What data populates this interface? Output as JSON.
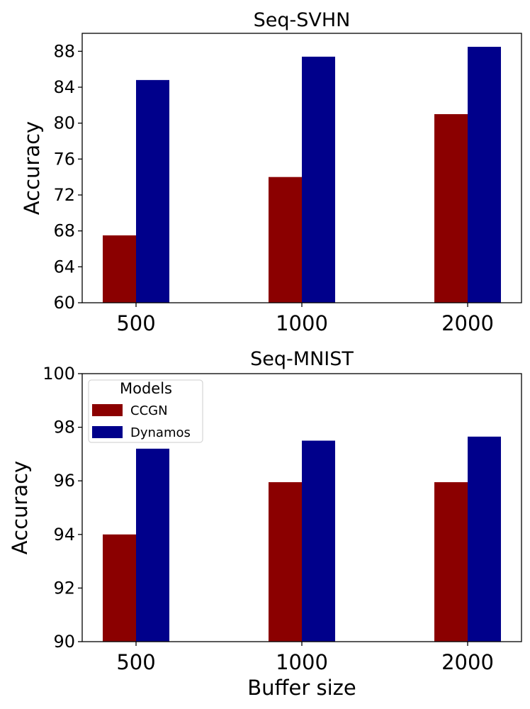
{
  "chart_data": [
    {
      "type": "bar",
      "title": "Seq-SVHN",
      "xlabel": "",
      "ylabel": "Accuracy",
      "categories": [
        "500",
        "1000",
        "2000"
      ],
      "ylim": [
        60,
        90
      ],
      "yticks": [
        "60",
        "64",
        "68",
        "72",
        "76",
        "80",
        "84",
        "88"
      ],
      "series": [
        {
          "name": "CCGN",
          "color": "#8b0000",
          "values": [
            67.5,
            74.0,
            81.0
          ]
        },
        {
          "name": "Dynamos",
          "color": "#00008b",
          "values": [
            84.8,
            87.4,
            88.5
          ]
        }
      ]
    },
    {
      "type": "bar",
      "title": "Seq-MNIST",
      "xlabel": "Buffer size",
      "ylabel": "Accuracy",
      "categories": [
        "500",
        "1000",
        "2000"
      ],
      "ylim": [
        90,
        100
      ],
      "yticks": [
        "90",
        "92",
        "94",
        "96",
        "98",
        "100"
      ],
      "legend": {
        "title": "Models",
        "placement": "top-left"
      },
      "series": [
        {
          "name": "CCGN",
          "color": "#8b0000",
          "values": [
            94.0,
            95.95,
            95.95
          ]
        },
        {
          "name": "Dynamos",
          "color": "#00008b",
          "values": [
            97.2,
            97.5,
            97.65
          ]
        }
      ]
    }
  ]
}
